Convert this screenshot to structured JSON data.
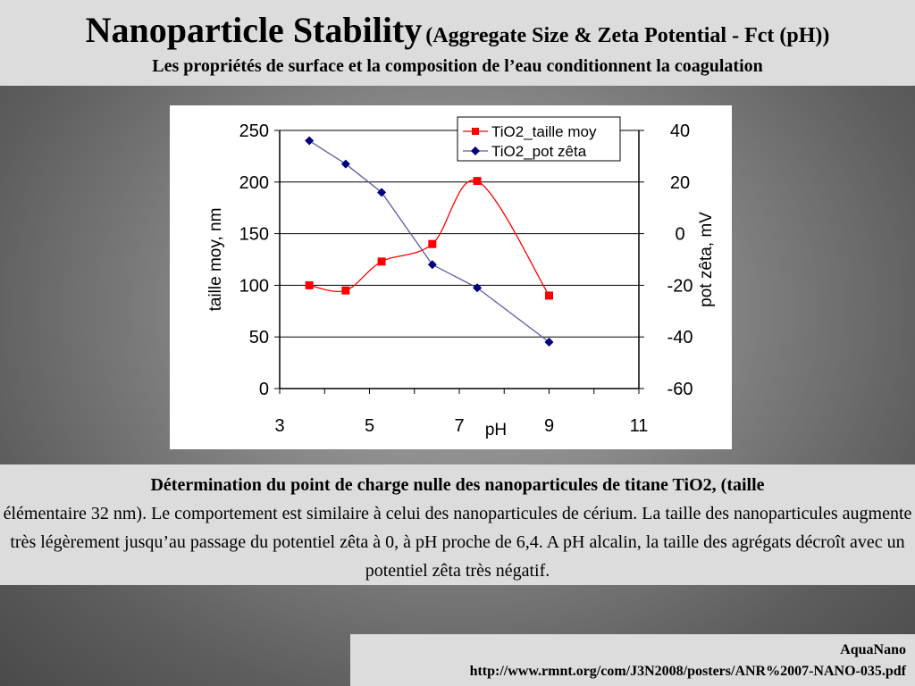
{
  "header": {
    "title": "Nanoparticle Stability",
    "title_sub": "(Aggregate Size & Zeta Potential - Fct (pH))",
    "subtitle": "Les propriétés de surface et la composition de l’eau conditionnent la coagulation"
  },
  "chart_data": {
    "type": "line",
    "xlabel": "pH",
    "ylabel": "taille moy, nm",
    "y2label": "pot zêta, mV",
    "xlim": [
      3,
      11
    ],
    "ylim": [
      0,
      250
    ],
    "y2lim": [
      -60,
      40
    ],
    "xticks": [
      "3",
      "5",
      "7",
      "9",
      "11"
    ],
    "yticks": [
      "0",
      "50",
      "100",
      "150",
      "200",
      "250"
    ],
    "y2ticks": [
      "-60",
      "-40",
      "-20",
      "0",
      "20",
      "40"
    ],
    "grid": "horizontal",
    "legend_position": "top-right",
    "series": [
      {
        "name": "TiO2_taille moy",
        "axis": "left",
        "color": "#ff0000",
        "marker": "square",
        "smooth": true,
        "x": [
          3.66,
          4.47,
          5.27,
          6.4,
          7.4,
          9.0
        ],
        "values": [
          100,
          95,
          123,
          140,
          201,
          90
        ]
      },
      {
        "name": "TiO2_pot zêta",
        "axis": "right",
        "color": "#000080",
        "line_color": "#5a5aa8",
        "marker": "diamond",
        "smooth": false,
        "x": [
          3.66,
          4.47,
          5.27,
          6.4,
          7.4,
          9.0
        ],
        "values": [
          36,
          27,
          16,
          -12,
          -21,
          -42
        ]
      }
    ]
  },
  "caption": {
    "bold": "Détermination du point de charge nulle des nanoparticules de titane TiO2, (taille",
    "text": "élémentaire 32 nm). Le comportement est similaire à celui des nanoparticules de cérium. La taille des nanoparticules augmente très légèrement jusqu’au passage du potentiel zêta à 0, à pH proche de 6,4. A pH alcalin, la taille des agrégats décroît avec un potentiel zêta très négatif."
  },
  "footer": {
    "source": "AquaNano",
    "url": "http://www.rmnt.org/com/J3N2008/posters/ANR%2007-NANO-035.pdf"
  }
}
